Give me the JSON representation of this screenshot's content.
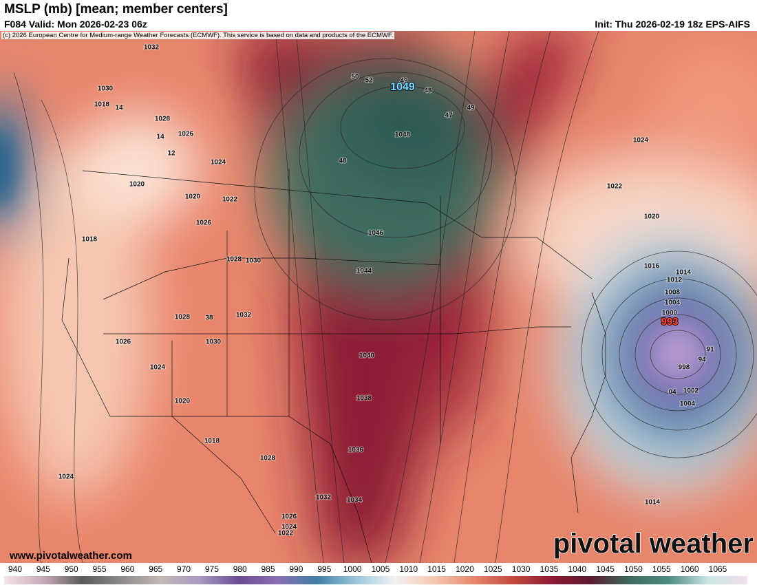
{
  "header": {
    "title": "MSLP (mb) [mean; member centers]",
    "valid": "F084 Valid: Mon 2026-02-23 06z",
    "init": "Init: Thu 2026-02-19 18z EPS-AIFS",
    "copyright": "(c) 2026 European Centre for Medium-range Weather Forecasts (ECMWF). This service is based on data and products of the ECMWF."
  },
  "map": {
    "isobar_labels": [
      "1032",
      "1030",
      "1018",
      "14",
      "1028",
      "1026",
      "14",
      "12",
      "1024",
      "1020",
      "1020",
      "1022",
      "1026",
      "1018",
      "1028",
      "1030",
      "1032",
      "1028",
      "38",
      "1030",
      "1026",
      "1024",
      "1020",
      "1018",
      "1028",
      "1024",
      "1026",
      "1024",
      "1022",
      "1032",
      "1034",
      "1036",
      "1038",
      "1040",
      "1044",
      "1046",
      "1048",
      "48",
      "50",
      "52",
      "49",
      "48",
      "49",
      "47",
      "1024",
      "1022",
      "1020",
      "1016",
      "1014",
      "1012",
      "1008",
      "1004",
      "1000",
      "998",
      "1002",
      "1004",
      "04",
      "1014",
      "91",
      "94"
    ],
    "high_center": "1049",
    "low_center": "993"
  },
  "branding": {
    "website": "www.pivotalweather.com",
    "logo": "pivotal weather"
  },
  "colorbar": {
    "ticks": [
      "940",
      "945",
      "950",
      "955",
      "960",
      "965",
      "970",
      "975",
      "980",
      "985",
      "990",
      "995",
      "1000",
      "1005",
      "1010",
      "1015",
      "1020",
      "1025",
      "1030",
      "1035",
      "1040",
      "1045",
      "1050",
      "1055",
      "1060",
      "1065"
    ],
    "colors": [
      "#f4e4ea",
      "#c7a9b6",
      "#5a5a5a",
      "#8c8c8c",
      "#c2b8b4",
      "#a89ac2",
      "#6a4c93",
      "#8a6fb5",
      "#3f7fa6",
      "#9cc7da",
      "#f2f2f2",
      "#f6c7b0",
      "#e8866c",
      "#c24a3e",
      "#8e1a35",
      "#5c1a30",
      "#3d6c5e",
      "#4f8d82",
      "#c8e6e2",
      "#f2e0ec"
    ]
  }
}
